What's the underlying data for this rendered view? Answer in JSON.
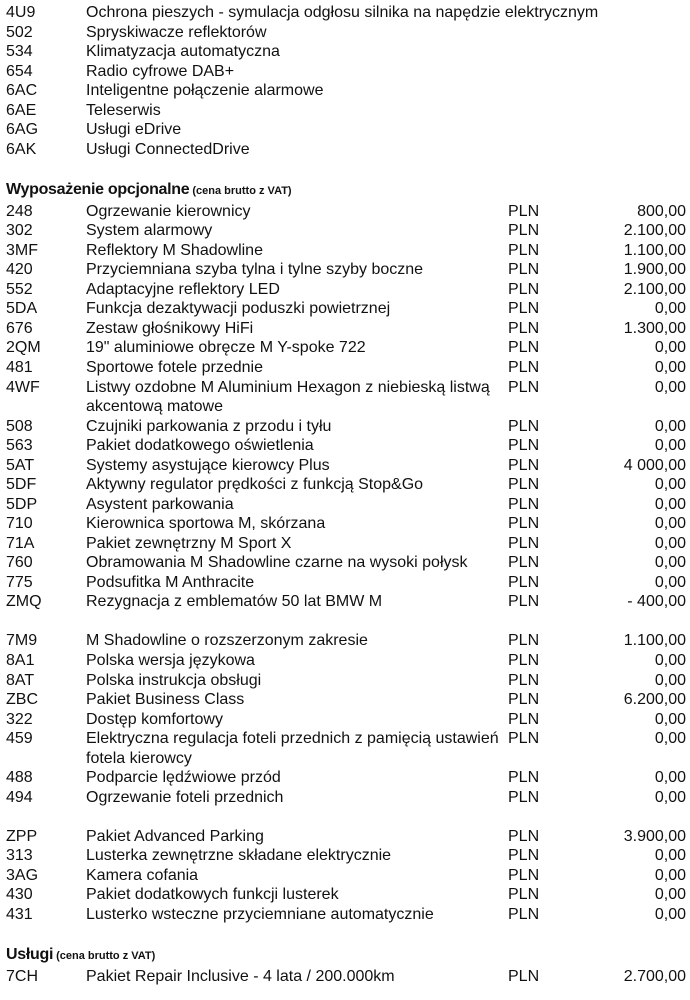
{
  "standard_items": [
    {
      "code": "4U9",
      "desc": "Ochrona pieszych - symulacja odgłosu silnika na napędzie elektrycznym"
    },
    {
      "code": "502",
      "desc": "Spryskiwacze reflektorów"
    },
    {
      "code": "534",
      "desc": "Klimatyzacja automatyczna"
    },
    {
      "code": "654",
      "desc": "Radio cyfrowe DAB+"
    },
    {
      "code": "6AC",
      "desc": "Inteligentne połączenie alarmowe"
    },
    {
      "code": "6AE",
      "desc": "Teleserwis"
    },
    {
      "code": "6AG",
      "desc": "Usługi eDrive"
    },
    {
      "code": "6AK",
      "desc": "Usługi ConnectedDrive"
    }
  ],
  "optional": {
    "title": "Wyposażenie opcjonalne",
    "subtitle": "(cena brutto z VAT)",
    "groups": [
      [
        {
          "code": "248",
          "desc": "Ogrzewanie kierownicy",
          "currency": "PLN",
          "price": "800,00"
        },
        {
          "code": "302",
          "desc": "System alarmowy",
          "currency": "PLN",
          "price": "2.100,00"
        },
        {
          "code": "3MF",
          "desc": "Reflektory M Shadowline",
          "currency": "PLN",
          "price": "1.100,00"
        },
        {
          "code": "420",
          "desc": "Przyciemniana szyba tylna i tylne szyby boczne",
          "currency": "PLN",
          "price": "1.900,00"
        },
        {
          "code": "552",
          "desc": "Adaptacyjne reflektory LED",
          "currency": "PLN",
          "price": "2.100,00"
        },
        {
          "code": "5DA",
          "desc": "Funkcja dezaktywacji poduszki powietrznej",
          "currency": "PLN",
          "price": "0,00"
        },
        {
          "code": "676",
          "desc": "Zestaw głośnikowy HiFi",
          "currency": "PLN",
          "price": "1.300,00"
        },
        {
          "code": "2QM",
          "desc": "19\" aluminiowe obręcze M Y-spoke 722",
          "currency": "PLN",
          "price": "0,00"
        },
        {
          "code": "481",
          "desc": "Sportowe fotele przednie",
          "currency": "PLN",
          "price": "0,00"
        },
        {
          "code": "4WF",
          "desc": "Listwy ozdobne M Aluminium Hexagon z niebieską listwą akcentową matowe",
          "currency": "PLN",
          "price": "0,00",
          "tall": true
        },
        {
          "code": "508",
          "desc": "Czujniki parkowania z przodu i tyłu",
          "currency": "PLN",
          "price": "0,00"
        },
        {
          "code": "563",
          "desc": "Pakiet dodatkowego oświetlenia",
          "currency": "PLN",
          "price": "0,00"
        },
        {
          "code": "5AT",
          "desc": "Systemy asystujące kierowcy Plus",
          "currency": "PLN",
          "price": "4 000,00"
        },
        {
          "code": "5DF",
          "desc": "Aktywny regulator prędkości z funkcją Stop&Go",
          "currency": "PLN",
          "price": "0,00"
        },
        {
          "code": "5DP",
          "desc": "Asystent parkowania",
          "currency": "PLN",
          "price": "0,00"
        },
        {
          "code": "710",
          "desc": "Kierownica sportowa M, skórzana",
          "currency": "PLN",
          "price": "0,00"
        },
        {
          "code": "71A",
          "desc": "Pakiet zewnętrzny M Sport X",
          "currency": "PLN",
          "price": "0,00"
        },
        {
          "code": "760",
          "desc": "Obramowania M Shadowline czarne na wysoki połysk",
          "currency": "PLN",
          "price": "0,00"
        },
        {
          "code": "775",
          "desc": "Podsufitka M Anthracite",
          "currency": "PLN",
          "price": "0,00"
        },
        {
          "code": "ZMQ",
          "desc": "Rezygnacja z emblematów 50 lat BMW M",
          "currency": "PLN",
          "price": "-  400,00"
        }
      ],
      [
        {
          "code": "7M9",
          "desc": "M Shadowline o rozszerzonym zakresie",
          "currency": "PLN",
          "price": "1.100,00"
        },
        {
          "code": "8A1",
          "desc": "Polska wersja językowa",
          "currency": "PLN",
          "price": "0,00"
        },
        {
          "code": "8AT",
          "desc": "Polska instrukcja obsługi",
          "currency": "PLN",
          "price": "0,00"
        },
        {
          "code": "ZBC",
          "desc": "Pakiet Business Class",
          "currency": "PLN",
          "price": "6.200,00"
        },
        {
          "code": "322",
          "desc": "Dostęp komfortowy",
          "currency": "PLN",
          "price": "0,00"
        },
        {
          "code": "459",
          "desc": "Elektryczna regulacja foteli przednich z pamięcią ustawień fotela kierowcy",
          "currency": "PLN",
          "price": "0,00",
          "tall": true
        },
        {
          "code": "488",
          "desc": "Podparcie lędźwiowe przód",
          "currency": "PLN",
          "price": "0,00"
        },
        {
          "code": "494",
          "desc": "Ogrzewanie foteli przednich",
          "currency": "PLN",
          "price": "0,00"
        }
      ],
      [
        {
          "code": "ZPP",
          "desc": "Pakiet Advanced Parking",
          "currency": "PLN",
          "price": "3.900,00"
        },
        {
          "code": "313",
          "desc": "Lusterka zewnętrzne składane elektrycznie",
          "currency": "PLN",
          "price": "0,00"
        },
        {
          "code": "3AG",
          "desc": "Kamera cofania",
          "currency": "PLN",
          "price": "0,00"
        },
        {
          "code": "430",
          "desc": "Pakiet dodatkowych funkcji lusterek",
          "currency": "PLN",
          "price": "0,00"
        },
        {
          "code": "431",
          "desc": "Lusterko wsteczne przyciemniane automatycznie",
          "currency": "PLN",
          "price": "0,00"
        }
      ]
    ]
  },
  "services": {
    "title": "Usługi",
    "subtitle": "(cena brutto z VAT)",
    "items": [
      {
        "code": "7CH",
        "desc": "Pakiet Repair Inclusive - 4 lata / 200.000km",
        "currency": "PLN",
        "price": "2.700,00"
      }
    ]
  }
}
